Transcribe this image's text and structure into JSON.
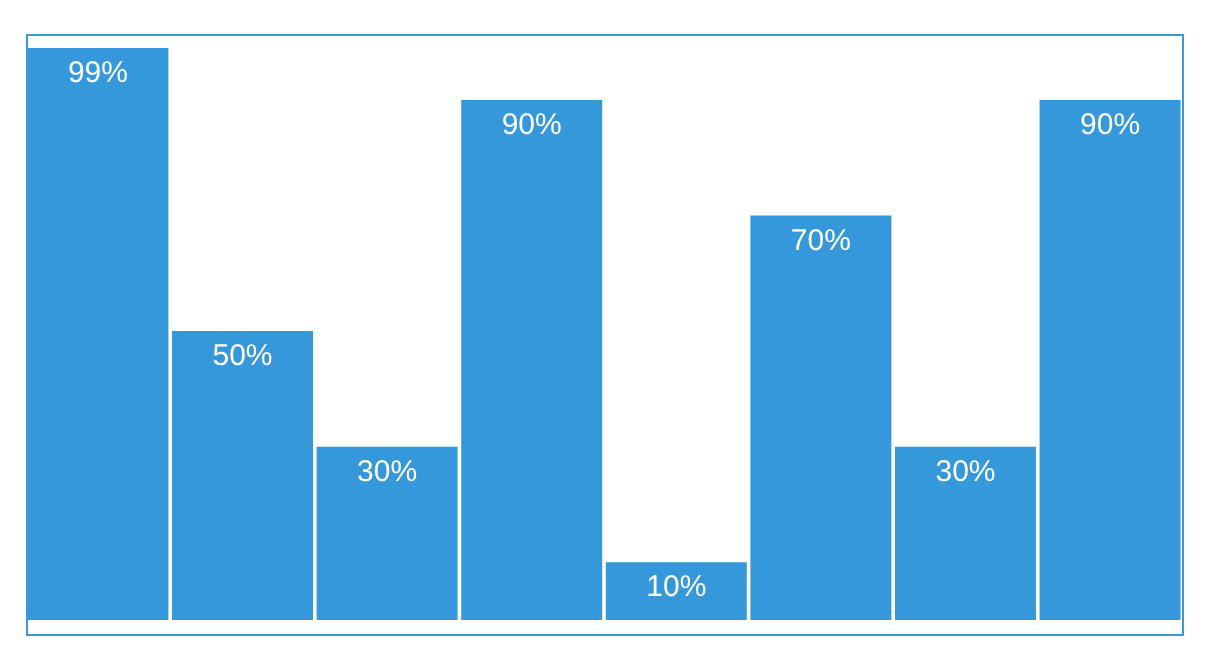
{
  "chart_data": {
    "type": "bar",
    "categories": [
      null,
      null,
      null,
      null,
      null,
      null,
      null,
      null
    ],
    "values": [
      99,
      50,
      30,
      90,
      10,
      70,
      30,
      90
    ],
    "value_labels": [
      "99%",
      "50%",
      "30%",
      "90%",
      "10%",
      "70%",
      "30%",
      "90%"
    ],
    "color": "#3498db"
  }
}
